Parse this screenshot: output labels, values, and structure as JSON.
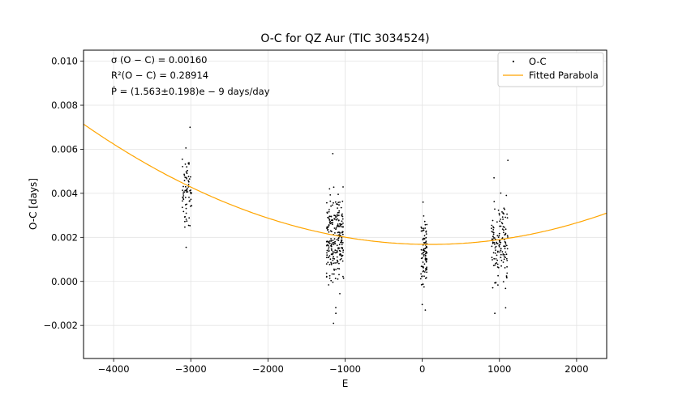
{
  "chart_data": {
    "type": "scatter",
    "title": "O-C for QZ Aur (TIC 3034524)",
    "xlabel": "E",
    "ylabel": "O-C [days]",
    "xlim": [
      -4390,
      2390
    ],
    "ylim": [
      -0.0035,
      0.0105
    ],
    "xticks": [
      -4000,
      -3000,
      -2000,
      -1000,
      0,
      1000,
      2000
    ],
    "xtick_labels": [
      "−4000",
      "−3000",
      "−2000",
      "−1000",
      "0",
      "1000",
      "2000"
    ],
    "yticks": [
      -0.002,
      0.0,
      0.002,
      0.004,
      0.006,
      0.008,
      0.01
    ],
    "ytick_labels": [
      "−0.002",
      "0.000",
      "0.002",
      "0.004",
      "0.006",
      "0.008",
      "0.010"
    ],
    "grid": true,
    "legend_position": "top-right",
    "annotations": [
      "σ (O − C) = 0.00160",
      "R²(O − C) = 0.28914",
      "Ṗ = (1.563±0.198)e − 9 days/day"
    ],
    "series": [
      {
        "name": "O-C",
        "kind": "scatter",
        "color": "#000000",
        "clusters": [
          {
            "x_center": -3050,
            "x_spread": 60,
            "y_mean": 0.004,
            "y_sd": 0.0011,
            "count": 70
          },
          {
            "x_center": -1130,
            "x_spread": 110,
            "y_mean": 0.002,
            "y_sd": 0.0013,
            "count": 240
          },
          {
            "x_center": 20,
            "x_spread": 40,
            "y_mean": 0.0011,
            "y_sd": 0.001,
            "count": 90
          },
          {
            "x_center": 1000,
            "x_spread": 110,
            "y_mean": 0.0018,
            "y_sd": 0.0012,
            "count": 140
          }
        ],
        "extremes": [
          [
            -3010,
            0.007
          ],
          [
            -3060,
            0.00155
          ],
          [
            -1160,
            0.0058
          ],
          [
            -1150,
            -0.0019
          ],
          [
            -1120,
            -0.00145
          ],
          [
            10,
            0.0036
          ],
          [
            40,
            -0.0013
          ],
          [
            0,
            -0.00105
          ],
          [
            1110,
            0.0055
          ],
          [
            940,
            -0.00145
          ],
          [
            1080,
            -0.0012
          ],
          [
            930,
            0.0047
          ]
        ]
      },
      {
        "name": "Fitted Parabola",
        "kind": "line",
        "color": "#FFA500",
        "vertex_x": 100,
        "vertex_y": 0.00168,
        "curvature": 2.71e-10
      }
    ]
  }
}
